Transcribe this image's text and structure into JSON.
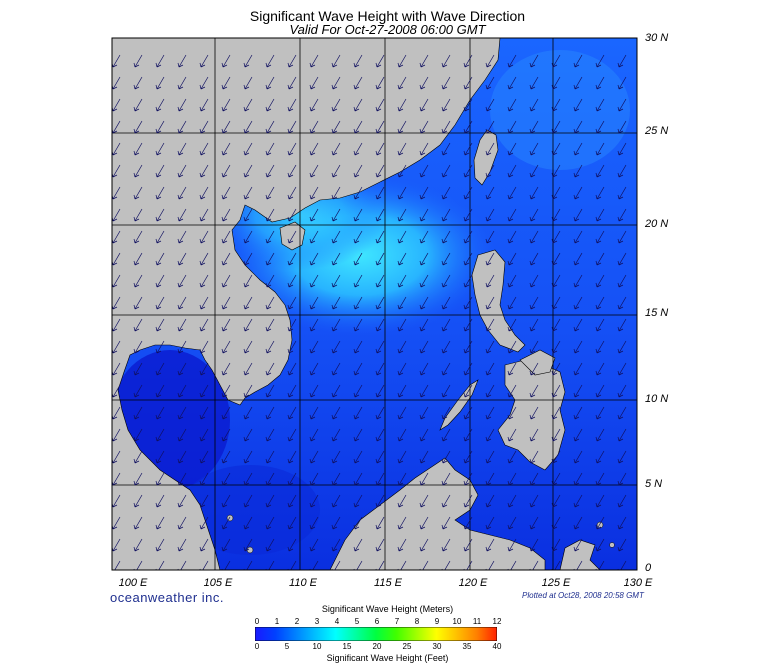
{
  "title": "Significant Wave Height with Wave Direction",
  "subtitle": "Valid For Oct-27-2008 06:00 GMT",
  "lat_labels": [
    "30 N",
    "25 N",
    "20 N",
    "15 N",
    "10 N",
    "5 N",
    "0"
  ],
  "lon_labels": [
    "100 E",
    "105 E",
    "110 E",
    "115 E",
    "120 E",
    "125 E",
    "130 E"
  ],
  "brand": "oceanweather inc.",
  "plotted": "Plotted at Oct28, 2008 20:58 GMT",
  "colorbar": {
    "title_meters": "Significant Wave Height (Meters)",
    "title_feet": "Significant Wave Height (Feet)",
    "meters_ticks": [
      "0",
      "1",
      "2",
      "3",
      "4",
      "5",
      "6",
      "7",
      "8",
      "9",
      "10",
      "11",
      "12"
    ],
    "feet_ticks": [
      "0",
      "5",
      "10",
      "15",
      "20",
      "25",
      "30",
      "35",
      "40"
    ],
    "colors": [
      "#1a1aff",
      "#0040ff",
      "#0080ff",
      "#00c0ff",
      "#00ffff",
      "#00ffa0",
      "#00ff40",
      "#40ff00",
      "#a0ff00",
      "#ffff00",
      "#ffc000",
      "#ff8000",
      "#ff2000"
    ]
  },
  "colors": {
    "land": "#c0c0c0",
    "sea_low": "#0a2fe0",
    "sea_mid": "#1a66ff",
    "sea_high": "#28b4ff",
    "peak": "#3fe6ff",
    "arrow": "#101060"
  }
}
